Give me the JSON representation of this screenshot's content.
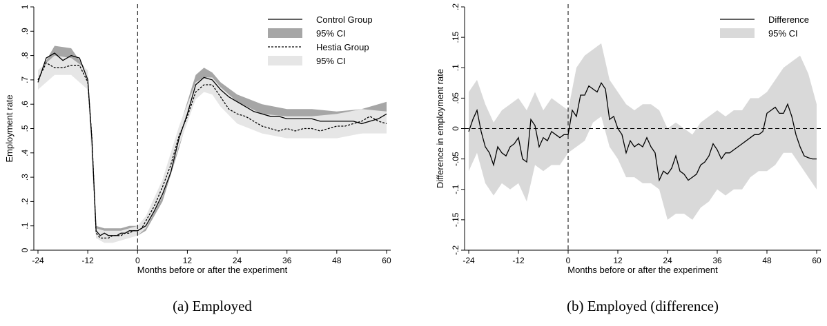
{
  "chart_data": [
    {
      "type": "line",
      "caption": "(a) Employed",
      "xlabel": "Months before or after the experiment",
      "ylabel": "Employment rate",
      "xlim": [
        -25,
        61
      ],
      "ylim": [
        0,
        1
      ],
      "xticks": [
        -24,
        -12,
        0,
        12,
        24,
        36,
        48,
        60
      ],
      "yticks": [
        0,
        0.1,
        0.2,
        0.3,
        0.4,
        0.5,
        0.6,
        0.7,
        0.8,
        0.9,
        1
      ],
      "ytick_labels": [
        "0",
        ".1",
        ".2",
        ".3",
        ".4",
        ".5",
        ".6",
        ".7",
        ".8",
        ".9",
        "1"
      ],
      "ytick_rotation": "vertical",
      "vline_x": 0,
      "legend_position": "top-right",
      "grid": false,
      "series": [
        {
          "name": "Control Group",
          "kind": "line",
          "style": "solid",
          "color": "#000000",
          "x": [
            -24,
            -22,
            -20,
            -18,
            -16,
            -14,
            -12,
            -11,
            -10,
            -9,
            -8,
            -7,
            -6,
            -5,
            -4,
            -3,
            -2,
            -1,
            0,
            1,
            2,
            4,
            6,
            8,
            10,
            12,
            14,
            16,
            18,
            20,
            22,
            24,
            26,
            28,
            30,
            32,
            34,
            36,
            38,
            40,
            42,
            44,
            46,
            48,
            50,
            52,
            54,
            56,
            58,
            60
          ],
          "y": [
            0.69,
            0.79,
            0.81,
            0.78,
            0.8,
            0.79,
            0.7,
            0.45,
            0.08,
            0.06,
            0.07,
            0.06,
            0.06,
            0.06,
            0.07,
            0.07,
            0.08,
            0.08,
            0.08,
            0.09,
            0.1,
            0.16,
            0.23,
            0.32,
            0.46,
            0.56,
            0.68,
            0.71,
            0.7,
            0.66,
            0.63,
            0.61,
            0.59,
            0.57,
            0.56,
            0.55,
            0.55,
            0.54,
            0.54,
            0.54,
            0.54,
            0.53,
            0.53,
            0.53,
            0.53,
            0.53,
            0.52,
            0.53,
            0.54,
            0.56
          ]
        },
        {
          "name": "95% CI",
          "kind": "band",
          "color": "#a6a6a6",
          "x": [
            -24,
            -20,
            -16,
            -12,
            -10,
            -8,
            -6,
            -4,
            -2,
            0,
            2,
            6,
            10,
            14,
            16,
            18,
            20,
            24,
            30,
            36,
            42,
            48,
            54,
            60
          ],
          "lower": [
            0.66,
            0.76,
            0.77,
            0.67,
            0.05,
            0.04,
            0.04,
            0.05,
            0.06,
            0.06,
            0.08,
            0.2,
            0.42,
            0.65,
            0.68,
            0.67,
            0.63,
            0.58,
            0.53,
            0.51,
            0.5,
            0.49,
            0.48,
            0.51
          ],
          "upper": [
            0.72,
            0.84,
            0.83,
            0.73,
            0.1,
            0.09,
            0.09,
            0.09,
            0.1,
            0.1,
            0.12,
            0.26,
            0.5,
            0.72,
            0.75,
            0.73,
            0.69,
            0.64,
            0.6,
            0.58,
            0.58,
            0.57,
            0.58,
            0.61
          ]
        },
        {
          "name": "Hestia Group",
          "kind": "line",
          "style": "dashed",
          "color": "#000000",
          "x": [
            -24,
            -22,
            -20,
            -18,
            -16,
            -14,
            -12,
            -11,
            -10,
            -9,
            -8,
            -7,
            -6,
            -5,
            -4,
            -3,
            -2,
            -1,
            0,
            1,
            2,
            4,
            6,
            8,
            10,
            12,
            14,
            16,
            18,
            20,
            22,
            24,
            26,
            28,
            30,
            32,
            34,
            36,
            38,
            40,
            42,
            44,
            46,
            48,
            50,
            52,
            54,
            56,
            58,
            60
          ],
          "y": [
            0.7,
            0.77,
            0.75,
            0.75,
            0.76,
            0.76,
            0.69,
            0.46,
            0.07,
            0.05,
            0.05,
            0.05,
            0.06,
            0.06,
            0.06,
            0.07,
            0.07,
            0.08,
            0.08,
            0.09,
            0.12,
            0.18,
            0.26,
            0.35,
            0.47,
            0.55,
            0.65,
            0.68,
            0.68,
            0.63,
            0.58,
            0.56,
            0.55,
            0.53,
            0.51,
            0.5,
            0.49,
            0.5,
            0.49,
            0.5,
            0.5,
            0.49,
            0.5,
            0.51,
            0.51,
            0.52,
            0.53,
            0.55,
            0.53,
            0.52
          ]
        },
        {
          "name": "95% CI",
          "kind": "band",
          "color": "#e6e6e6",
          "x": [
            -24,
            -20,
            -16,
            -12,
            -10,
            -8,
            -6,
            -4,
            -2,
            0,
            2,
            6,
            10,
            14,
            16,
            18,
            20,
            24,
            30,
            36,
            42,
            48,
            54,
            60
          ],
          "lower": [
            0.66,
            0.72,
            0.72,
            0.66,
            0.05,
            0.03,
            0.03,
            0.04,
            0.05,
            0.06,
            0.09,
            0.22,
            0.43,
            0.62,
            0.65,
            0.64,
            0.59,
            0.52,
            0.48,
            0.46,
            0.46,
            0.46,
            0.48,
            0.48
          ],
          "upper": [
            0.74,
            0.8,
            0.79,
            0.74,
            0.09,
            0.08,
            0.08,
            0.08,
            0.09,
            0.1,
            0.14,
            0.29,
            0.51,
            0.69,
            0.71,
            0.71,
            0.67,
            0.61,
            0.56,
            0.55,
            0.55,
            0.56,
            0.58,
            0.57
          ]
        }
      ]
    },
    {
      "type": "line",
      "caption": "(b) Employed (difference)",
      "xlabel": "Months before or after the experiment",
      "ylabel": "Difference in employment rate",
      "xlim": [
        -25,
        61
      ],
      "ylim": [
        -0.2,
        0.2
      ],
      "xticks": [
        -24,
        -12,
        0,
        12,
        24,
        36,
        48,
        60
      ],
      "yticks": [
        -0.2,
        -0.15,
        -0.1,
        -0.05,
        0,
        0.05,
        0.1,
        0.15,
        0.2
      ],
      "ytick_labels": [
        "-.2",
        "-.15",
        "-.1",
        "-.05",
        "0",
        ".05",
        ".1",
        ".15",
        ".2"
      ],
      "ytick_rotation": "vertical",
      "vline_x": 0,
      "hline_y": 0,
      "legend_position": "top-right",
      "grid": false,
      "series": [
        {
          "name": "Difference",
          "kind": "line",
          "style": "solid",
          "color": "#000000",
          "x": [
            -24,
            -23,
            -22,
            -21,
            -20,
            -19,
            -18,
            -17,
            -16,
            -15,
            -14,
            -13,
            -12,
            -11,
            -10,
            -9,
            -8,
            -7,
            -6,
            -5,
            -4,
            -3,
            -2,
            -1,
            0,
            1,
            2,
            3,
            4,
            5,
            6,
            7,
            8,
            9,
            10,
            11,
            12,
            13,
            14,
            15,
            16,
            17,
            18,
            19,
            20,
            21,
            22,
            23,
            24,
            25,
            26,
            27,
            28,
            29,
            30,
            31,
            32,
            33,
            34,
            35,
            36,
            37,
            38,
            39,
            40,
            41,
            42,
            43,
            44,
            45,
            46,
            47,
            48,
            49,
            50,
            51,
            52,
            53,
            54,
            55,
            56,
            57,
            58,
            59,
            60
          ],
          "y": [
            -0.005,
            0.015,
            0.03,
            -0.005,
            -0.03,
            -0.04,
            -0.06,
            -0.03,
            -0.04,
            -0.045,
            -0.03,
            -0.025,
            -0.015,
            -0.05,
            -0.055,
            0.015,
            0.005,
            -0.03,
            -0.015,
            -0.02,
            -0.005,
            -0.01,
            -0.015,
            -0.01,
            -0.01,
            0.03,
            0.02,
            0.055,
            0.055,
            0.07,
            0.065,
            0.06,
            0.075,
            0.065,
            0.015,
            0.02,
            0.0,
            -0.01,
            -0.04,
            -0.02,
            -0.03,
            -0.025,
            -0.03,
            -0.015,
            -0.03,
            -0.04,
            -0.085,
            -0.07,
            -0.075,
            -0.065,
            -0.045,
            -0.07,
            -0.075,
            -0.085,
            -0.08,
            -0.075,
            -0.06,
            -0.055,
            -0.045,
            -0.025,
            -0.035,
            -0.05,
            -0.04,
            -0.04,
            -0.035,
            -0.03,
            -0.025,
            -0.02,
            -0.015,
            -0.01,
            -0.01,
            -0.005,
            0.025,
            0.03,
            0.035,
            0.025,
            0.025,
            0.04,
            0.02,
            -0.01,
            -0.03,
            -0.045,
            -0.048,
            -0.05,
            -0.05
          ]
        },
        {
          "name": "95% CI",
          "kind": "band",
          "color": "#d9d9d9",
          "x": [
            -24,
            -22,
            -20,
            -18,
            -16,
            -14,
            -12,
            -10,
            -8,
            -6,
            -4,
            -2,
            0,
            2,
            4,
            6,
            8,
            10,
            12,
            14,
            16,
            18,
            20,
            22,
            24,
            26,
            28,
            30,
            32,
            34,
            36,
            38,
            40,
            42,
            44,
            46,
            48,
            50,
            52,
            54,
            56,
            58,
            60
          ],
          "lower": [
            -0.07,
            -0.04,
            -0.09,
            -0.11,
            -0.09,
            -0.1,
            -0.09,
            -0.12,
            -0.06,
            -0.07,
            -0.06,
            -0.06,
            -0.04,
            -0.03,
            -0.02,
            0.01,
            0.02,
            -0.03,
            -0.05,
            -0.08,
            -0.08,
            -0.09,
            -0.09,
            -0.1,
            -0.15,
            -0.14,
            -0.14,
            -0.15,
            -0.13,
            -0.12,
            -0.1,
            -0.11,
            -0.1,
            -0.1,
            -0.08,
            -0.07,
            -0.07,
            -0.06,
            -0.04,
            -0.04,
            -0.06,
            -0.08,
            -0.1
          ],
          "upper": [
            0.06,
            0.08,
            0.04,
            0.01,
            0.03,
            0.04,
            0.05,
            0.03,
            0.06,
            0.03,
            0.05,
            0.04,
            0.03,
            0.1,
            0.12,
            0.13,
            0.14,
            0.08,
            0.06,
            0.04,
            0.03,
            0.04,
            0.04,
            0.03,
            0.0,
            0.01,
            0.0,
            -0.01,
            0.01,
            0.02,
            0.03,
            0.02,
            0.03,
            0.03,
            0.05,
            0.05,
            0.06,
            0.08,
            0.1,
            0.11,
            0.12,
            0.09,
            0.04
          ]
        }
      ]
    }
  ]
}
